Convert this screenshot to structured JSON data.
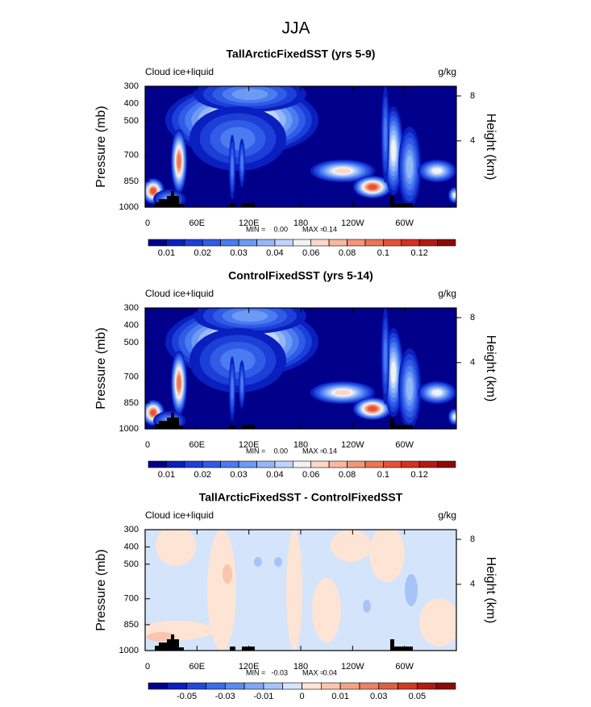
{
  "title": "JJA",
  "chart_data": [
    {
      "type": "contour",
      "title": "TallArcticFixedSST (yrs 5-9)",
      "left_label": "Cloud ice+liquid",
      "units": "g/kg",
      "ylabel": "Pressure (mb)",
      "y2label": "Height (km)",
      "xlim": [
        0,
        360
      ],
      "xticks": [
        0,
        {
          "value": 60,
          "label": "60E"
        },
        {
          "value": 120,
          "label": "120E"
        },
        180,
        {
          "value": 240,
          "label": "120W"
        },
        {
          "value": 300,
          "label": "60W"
        }
      ],
      "ylim": [
        1000,
        300
      ],
      "yticks": [
        300,
        400,
        500,
        700,
        850,
        1000
      ],
      "y2ticks": [
        8,
        4
      ],
      "min_label": "MIN =",
      "min": {
        "value": 0,
        "label": "0.00"
      },
      "max_label": "MAX =",
      "max": 0.14,
      "colorbar": {
        "levels": [
          0.01,
          0.015,
          0.02,
          0.025,
          0.03,
          0.035,
          0.04,
          0.05,
          0.06,
          0.07,
          0.08,
          0.09,
          0.1,
          0.11,
          0.12,
          0.13
        ],
        "ticks": [
          0.01,
          0.02,
          0.03,
          0.04,
          0.06,
          0.08,
          0.1,
          0.12
        ],
        "colors": [
          "#00008b",
          "#0a1fbf",
          "#1c3fd8",
          "#2f5be6",
          "#4a7bf0",
          "#6d9af4",
          "#94b8f7",
          "#bed4fa",
          "#f2f2f2",
          "#fcd8c8",
          "#f8b8a0",
          "#f39678",
          "#ec7556",
          "#e2533a",
          "#d33322",
          "#b51a12",
          "#8c0a08"
        ]
      }
    },
    {
      "type": "contour",
      "title": "ControlFixedSST (yrs 5-14)",
      "left_label": "Cloud ice+liquid",
      "units": "g/kg",
      "ylabel": "Pressure (mb)",
      "y2label": "Height (km)",
      "xlim": [
        0,
        360
      ],
      "xticks": [
        0,
        {
          "value": 60,
          "label": "60E"
        },
        {
          "value": 120,
          "label": "120E"
        },
        180,
        {
          "value": 240,
          "label": "120W"
        },
        {
          "value": 300,
          "label": "60W"
        }
      ],
      "ylim": [
        1000,
        300
      ],
      "yticks": [
        300,
        400,
        500,
        700,
        850,
        1000
      ],
      "y2ticks": [
        8,
        4
      ],
      "min_label": "MIN =",
      "min": {
        "value": 0,
        "label": "0.00"
      },
      "max_label": "MAX =",
      "max": 0.14,
      "colorbar": {
        "levels": [
          0.01,
          0.015,
          0.02,
          0.025,
          0.03,
          0.035,
          0.04,
          0.05,
          0.06,
          0.07,
          0.08,
          0.09,
          0.1,
          0.11,
          0.12,
          0.13
        ],
        "ticks": [
          0.01,
          0.02,
          0.03,
          0.04,
          0.06,
          0.08,
          0.1,
          0.12
        ],
        "colors": [
          "#00008b",
          "#0a1fbf",
          "#1c3fd8",
          "#2f5be6",
          "#4a7bf0",
          "#6d9af4",
          "#94b8f7",
          "#bed4fa",
          "#f2f2f2",
          "#fcd8c8",
          "#f8b8a0",
          "#f39678",
          "#ec7556",
          "#e2533a",
          "#d33322",
          "#b51a12",
          "#8c0a08"
        ]
      }
    },
    {
      "type": "contour",
      "title": "TallArcticFixedSST - ControlFixedSST",
      "left_label": "Cloud ice+liquid",
      "units": "g/kg",
      "ylabel": "Pressure (mb)",
      "y2label": "Height (km)",
      "xlim": [
        0,
        360
      ],
      "xticks": [
        0,
        {
          "value": 60,
          "label": "60E"
        },
        {
          "value": 120,
          "label": "120E"
        },
        180,
        {
          "value": 240,
          "label": "120W"
        },
        {
          "value": 300,
          "label": "60W"
        }
      ],
      "ylim": [
        1000,
        300
      ],
      "yticks": [
        300,
        400,
        500,
        700,
        850,
        1000
      ],
      "y2ticks": [
        8,
        4
      ],
      "min_label": "MIN =",
      "min": -0.03,
      "max_label": "MAX =",
      "max": 0.04,
      "colorbar": {
        "levels": [
          -0.06,
          -0.05,
          -0.04,
          -0.03,
          -0.02,
          -0.01,
          -0.005,
          0,
          0.005,
          0.01,
          0.02,
          0.03,
          0.04,
          0.05,
          0.06
        ],
        "ticks": [
          -0.05,
          -0.03,
          -0.01,
          0,
          0.01,
          0.03,
          0.05
        ],
        "colors": [
          "#00008b",
          "#0a1fbf",
          "#2448d8",
          "#3d6ae8",
          "#5a8bf0",
          "#7ea8f5",
          "#a6c4f8",
          "#d4e4fb",
          "#fde4d4",
          "#f9c6ad",
          "#f3a487",
          "#ec8264",
          "#e05e42",
          "#cf3a26",
          "#b31a12",
          "#8c0a08"
        ]
      }
    }
  ]
}
